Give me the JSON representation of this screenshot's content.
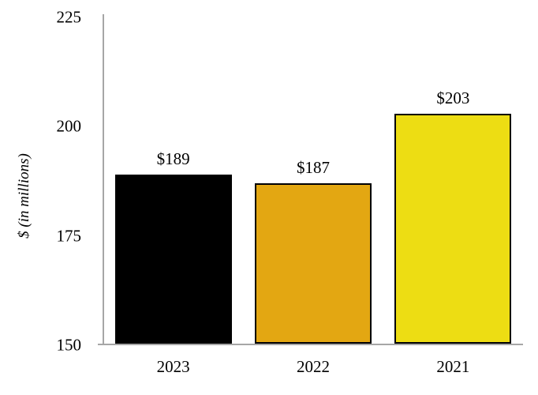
{
  "chart_data": {
    "type": "bar",
    "title": "",
    "xlabel": "",
    "ylabel": "$ (in millions)",
    "categories": [
      "2023",
      "2022",
      "2021"
    ],
    "values": [
      189,
      187,
      203
    ],
    "value_labels": [
      "$189",
      "$187",
      "$203"
    ],
    "bar_colors": [
      "#000000",
      "#e3a712",
      "#eddd13"
    ],
    "bar_border_color": "#000000",
    "ylim": [
      150,
      225
    ],
    "yticks": [
      225,
      200,
      175,
      150
    ],
    "ytick_labels": [
      "225",
      "200",
      "175",
      "150"
    ],
    "grid": false,
    "legend": false,
    "axis_color": "#a6a6a6",
    "background": "#ffffff",
    "text_color": "#000000"
  }
}
